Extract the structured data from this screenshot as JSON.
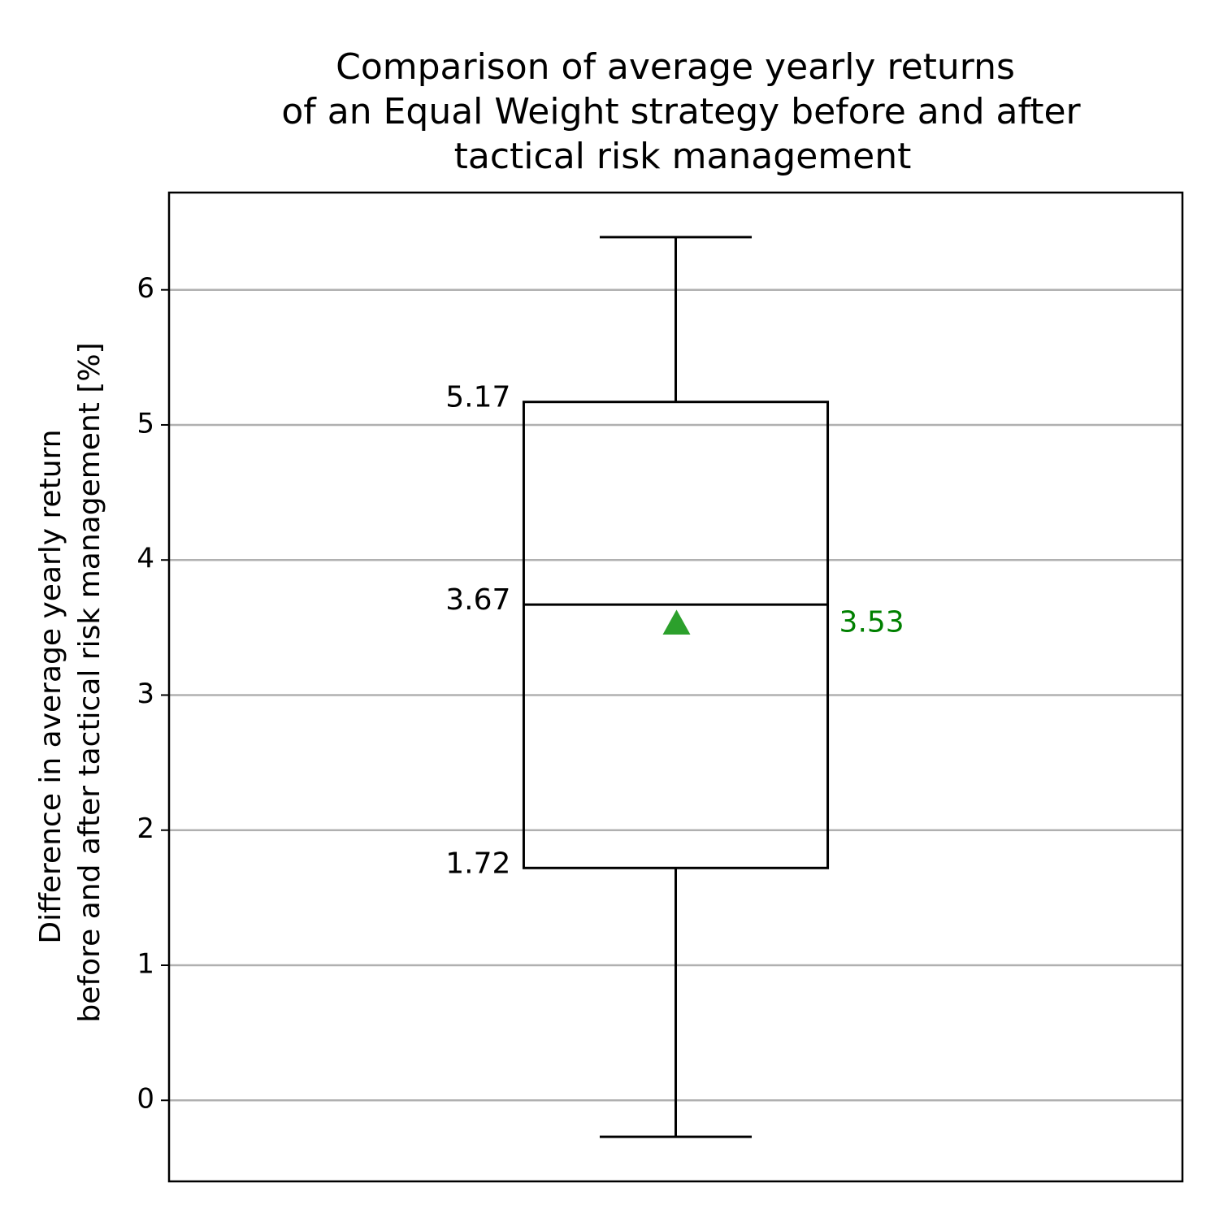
{
  "chart_data": {
    "type": "box",
    "title": [
      "Comparison of average yearly returns",
      "of an Equal Weight strategy before and after",
      "tactical risk management"
    ],
    "ylabel": [
      "Difference in average yearly return",
      "before and after tactical risk management [%]"
    ],
    "ylim": [
      -0.6,
      6.72
    ],
    "yticks": [
      0,
      1,
      2,
      3,
      4,
      5,
      6
    ],
    "grid": true,
    "boxes": [
      {
        "whislo": -0.27,
        "q1": 1.72,
        "med": 3.67,
        "q3": 5.17,
        "whishi": 6.39,
        "mean": 3.53
      }
    ],
    "color": "#000000",
    "mean_color": "#2ca02c",
    "mean_label_color": "#008000"
  }
}
